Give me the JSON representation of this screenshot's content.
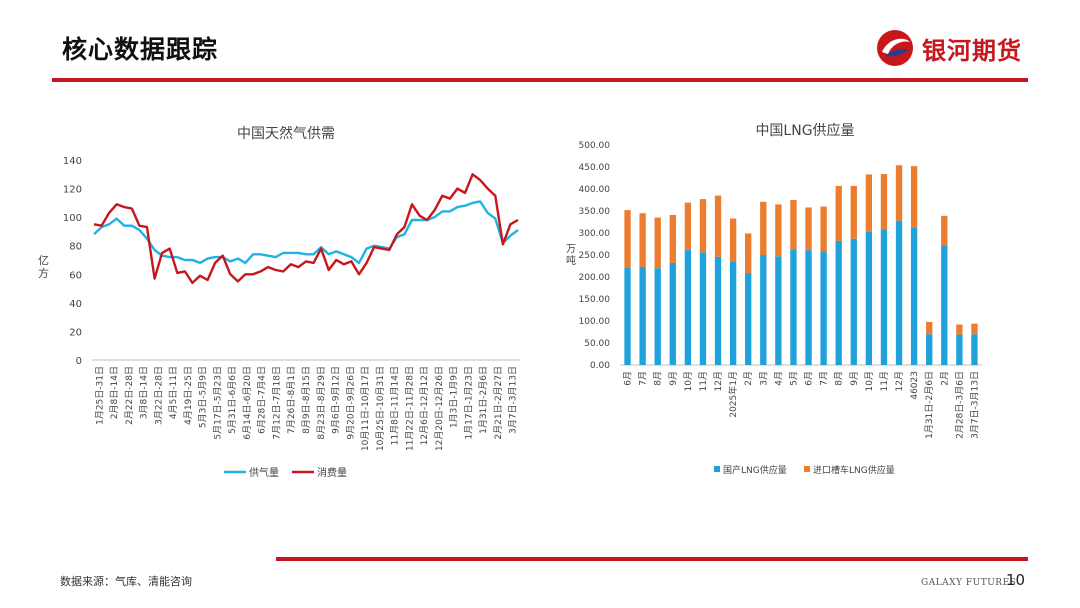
{
  "header": {
    "title": "核心数据跟踪",
    "logo_text": "银河期货"
  },
  "footer": {
    "source": "数据来源：气库、清能咨询",
    "brand_en": "GALAXY FUTURES",
    "page": "10"
  },
  "colors": {
    "accent": "#c8161d",
    "supply": "#1fb3e5",
    "demand": "#c8161d",
    "domestic": "#1fa2dc",
    "import": "#ec7c30"
  },
  "chart_data": [
    {
      "type": "line",
      "title": "中国天然气供需",
      "ylabel": "亿方",
      "xlabel": "",
      "ylim": [
        0,
        140
      ],
      "yticks": [
        0,
        20,
        40,
        60,
        80,
        100,
        120,
        140
      ],
      "legend_position": "bottom",
      "x_tick_labels": [
        "1月25日-31日",
        "2月8日-14日",
        "2月22日-28日",
        "3月8日-14日",
        "3月22日-28日",
        "4月5日-11日",
        "4月19日-25日",
        "5月3日-5月9日",
        "5月17日-5月23日",
        "5月31日-6月6日",
        "6月14日-6月20日",
        "6月28日-7月4日",
        "7月12日-7月18日",
        "7月26日-8月1日",
        "8月9日-8月15日",
        "8月23日-8月29日",
        "9月6日-9月12日",
        "9月20日-9月26日",
        "10月11日-10月17日",
        "10月25日-10月31日",
        "11月8日-11月14日",
        "11月22日-11月28日",
        "12月6日-12月12日",
        "12月20日-12月26日",
        "1月3日-1月9日",
        "1月17日-1月23日",
        "1月31日-2月6日",
        "2月21日-2月27日",
        "3月7日-3月13日"
      ],
      "series": [
        {
          "name": "供气量",
          "values": [
            88,
            93,
            95,
            99,
            94,
            94,
            91,
            85,
            77,
            73,
            72,
            72,
            70,
            70,
            68,
            71,
            72,
            72,
            69,
            71,
            68,
            74,
            74,
            73,
            72,
            75,
            75,
            75,
            74,
            74,
            79,
            74,
            76,
            74,
            72,
            68,
            78,
            80,
            79,
            78,
            86,
            88,
            98,
            98,
            98,
            100,
            104,
            104,
            107,
            108,
            110,
            111,
            103,
            99,
            82,
            87,
            91
          ]
        },
        {
          "name": "消费量",
          "values": [
            95,
            94,
            103,
            109,
            107,
            106,
            94,
            93,
            57,
            75,
            78,
            61,
            62,
            54,
            59,
            56,
            68,
            73,
            60,
            55,
            60,
            60,
            62,
            65,
            63,
            62,
            67,
            65,
            69,
            68,
            78,
            63,
            70,
            67,
            69,
            60,
            68,
            79,
            78,
            77,
            88,
            93,
            109,
            101,
            98,
            105,
            115,
            113,
            120,
            117,
            130,
            126,
            120,
            115,
            81,
            95,
            98
          ]
        }
      ]
    },
    {
      "type": "bar",
      "stacked": true,
      "title": "中国LNG供应量",
      "ylabel": "万吨",
      "xlabel": "",
      "ylim": [
        0,
        500
      ],
      "yticks": [
        "0.00",
        "50.00",
        "100.00",
        "150.00",
        "200.00",
        "250.00",
        "300.00",
        "350.00",
        "400.00",
        "450.00",
        "500.00"
      ],
      "legend_position": "bottom",
      "categories": [
        "6月",
        "7月",
        "8月",
        "9月",
        "10月",
        "11月",
        "12月",
        "2025年1月",
        "2月",
        "3月",
        "4月",
        "5月",
        "6月",
        "7月",
        "8月",
        "9月",
        "10月",
        "11月",
        "12月",
        "46023",
        "1月31日-2月6日",
        "2月",
        "2月28日-3月6日",
        "3月7日-3月13日"
      ],
      "series": [
        {
          "name": "国产LNG供应量",
          "values": [
            222,
            223,
            220,
            232,
            262,
            256,
            246,
            235,
            209,
            250,
            247,
            263,
            261,
            258,
            282,
            287,
            303,
            308,
            328,
            313,
            70,
            272,
            69,
            70
          ]
        },
        {
          "name": "进口槽车LNG供应量",
          "values": [
            130,
            122,
            115,
            109,
            107,
            121,
            139,
            98,
            90,
            121,
            118,
            112,
            97,
            102,
            125,
            120,
            130,
            126,
            126,
            139,
            28,
            67,
            23,
            24
          ]
        }
      ]
    }
  ]
}
